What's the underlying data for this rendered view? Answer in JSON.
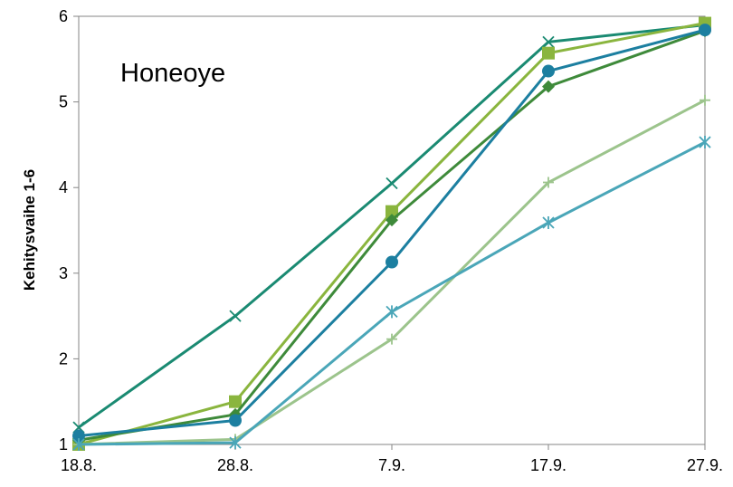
{
  "chart_data": {
    "type": "line",
    "title": "",
    "annotation": "Honeoye",
    "xlabel": "",
    "ylabel": "Kehitysvaihe 1-6",
    "x_tick_labels": [
      "18.8.",
      "28.8.",
      "7.9.",
      "17.9.",
      "27.9."
    ],
    "x_ticks": [
      0,
      10,
      20,
      30,
      40
    ],
    "xlim": [
      0,
      40
    ],
    "y_ticks": [
      1,
      2,
      3,
      4,
      5,
      6
    ],
    "ylim": [
      1,
      6
    ],
    "grid": false,
    "legend": "none",
    "series": [
      {
        "marker": "x",
        "color": "#1a8a72",
        "points": [
          [
            0,
            1.2
          ],
          [
            10,
            2.5
          ],
          [
            20,
            4.05
          ],
          [
            30,
            5.7
          ],
          [
            40,
            5.9
          ]
        ]
      },
      {
        "marker": "square",
        "color": "#8ab53e",
        "points": [
          [
            0,
            1.0
          ],
          [
            10,
            1.5
          ],
          [
            20,
            3.72
          ],
          [
            30,
            5.57
          ],
          [
            40,
            5.92
          ]
        ]
      },
      {
        "marker": "diamond",
        "color": "#3e8a3a",
        "points": [
          [
            0,
            1.05
          ],
          [
            10,
            1.35
          ],
          [
            20,
            3.62
          ],
          [
            30,
            5.18
          ],
          [
            40,
            5.83
          ]
        ]
      },
      {
        "marker": "circle",
        "color": "#1c7fa0",
        "points": [
          [
            0,
            1.1
          ],
          [
            10,
            1.28
          ],
          [
            20,
            3.13
          ],
          [
            30,
            5.36
          ],
          [
            40,
            5.84
          ]
        ]
      },
      {
        "marker": "plus",
        "color": "#9cc48c",
        "points": [
          [
            0,
            1.0
          ],
          [
            10,
            1.06
          ],
          [
            20,
            2.23
          ],
          [
            30,
            4.06
          ],
          [
            40,
            5.02
          ]
        ]
      },
      {
        "marker": "star",
        "color": "#4aa6b8",
        "points": [
          [
            0,
            1.0
          ],
          [
            10,
            1.02
          ],
          [
            20,
            2.55
          ],
          [
            30,
            3.59
          ],
          [
            40,
            4.53
          ]
        ]
      }
    ]
  }
}
